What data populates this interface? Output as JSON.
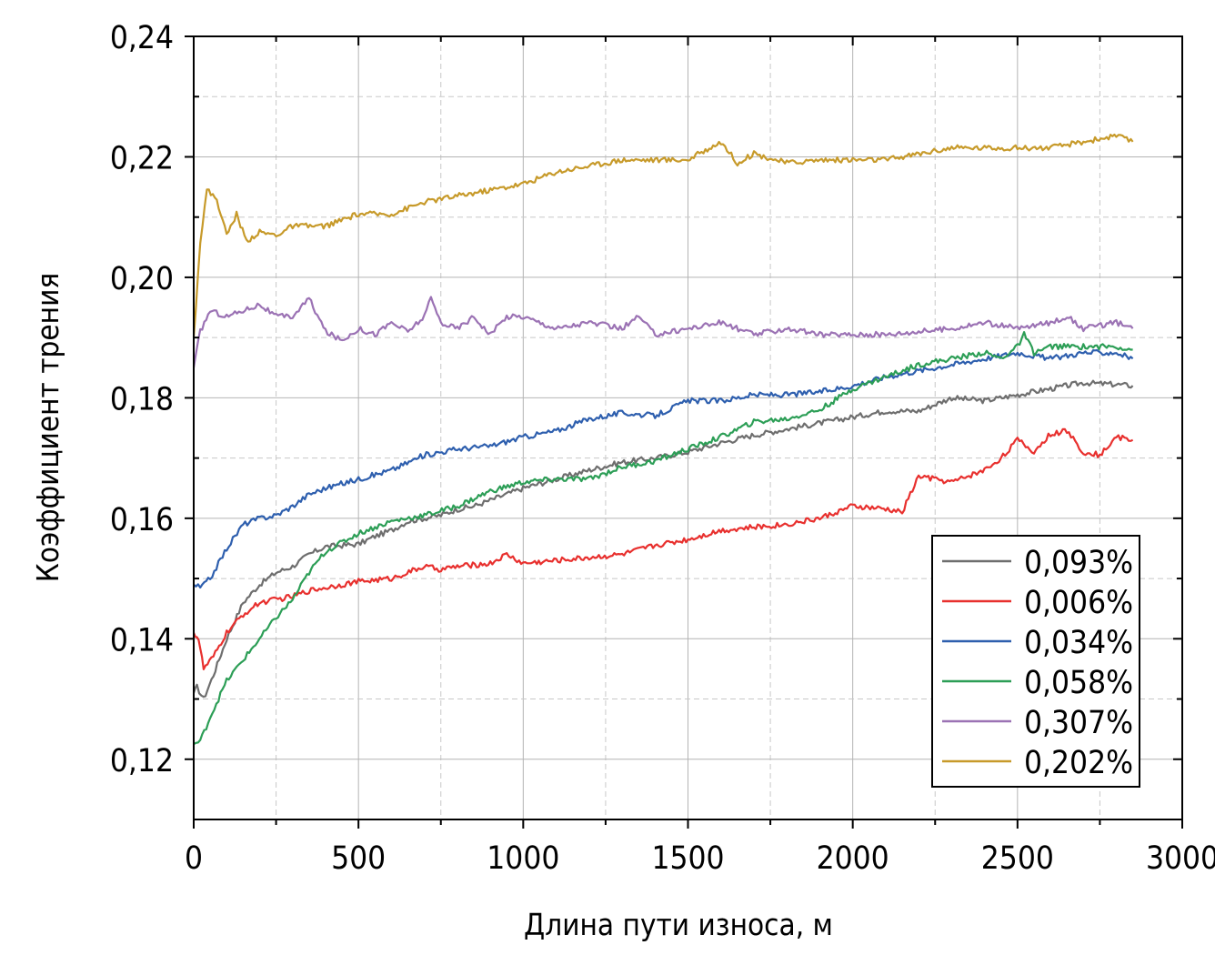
{
  "chart_data": {
    "type": "line",
    "xlabel": "Длина пути износа, м",
    "ylabel": "Коэффициент трения",
    "xlim": [
      0,
      3000
    ],
    "ylim": [
      0.11,
      0.24
    ],
    "x_ticks": [
      "0",
      "500",
      "1000",
      "1500",
      "2000",
      "2500",
      "3000"
    ],
    "y_ticks": [
      "0,12",
      "0,14",
      "0,16",
      "0,18",
      "0,20",
      "0,22",
      "0,24"
    ],
    "grid": true,
    "legend_position": "bottom-right",
    "series": [
      {
        "name": "0,093%",
        "color": "#6e6e6e",
        "points": [
          [
            0,
            0.131
          ],
          [
            10,
            0.132
          ],
          [
            30,
            0.13
          ],
          [
            60,
            0.134
          ],
          [
            100,
            0.14
          ],
          [
            150,
            0.146
          ],
          [
            200,
            0.149
          ],
          [
            250,
            0.151
          ],
          [
            300,
            0.152
          ],
          [
            350,
            0.154
          ],
          [
            400,
            0.1553
          ],
          [
            450,
            0.1555
          ],
          [
            500,
            0.1557
          ],
          [
            550,
            0.157
          ],
          [
            600,
            0.158
          ],
          [
            650,
            0.1595
          ],
          [
            700,
            0.16
          ],
          [
            750,
            0.1605
          ],
          [
            800,
            0.1615
          ],
          [
            850,
            0.162
          ],
          [
            900,
            0.163
          ],
          [
            950,
            0.164
          ],
          [
            1000,
            0.165
          ],
          [
            1100,
            0.1665
          ],
          [
            1200,
            0.168
          ],
          [
            1300,
            0.1693
          ],
          [
            1400,
            0.17
          ],
          [
            1500,
            0.171
          ],
          [
            1600,
            0.1725
          ],
          [
            1700,
            0.1738
          ],
          [
            1800,
            0.1748
          ],
          [
            1900,
            0.1758
          ],
          [
            2000,
            0.1768
          ],
          [
            2100,
            0.1778
          ],
          [
            2200,
            0.1778
          ],
          [
            2300,
            0.18
          ],
          [
            2400,
            0.1795
          ],
          [
            2500,
            0.1805
          ],
          [
            2600,
            0.1815
          ],
          [
            2700,
            0.1825
          ],
          [
            2800,
            0.1822
          ],
          [
            2850,
            0.182
          ]
        ]
      },
      {
        "name": "0,006%",
        "color": "#e8302e",
        "points": [
          [
            0,
            0.141
          ],
          [
            15,
            0.14
          ],
          [
            30,
            0.135
          ],
          [
            60,
            0.137
          ],
          [
            100,
            0.141
          ],
          [
            150,
            0.144
          ],
          [
            200,
            0.146
          ],
          [
            250,
            0.1465
          ],
          [
            300,
            0.147
          ],
          [
            350,
            0.148
          ],
          [
            400,
            0.1485
          ],
          [
            500,
            0.1495
          ],
          [
            600,
            0.15
          ],
          [
            700,
            0.152
          ],
          [
            750,
            0.1515
          ],
          [
            800,
            0.152
          ],
          [
            900,
            0.1525
          ],
          [
            950,
            0.154
          ],
          [
            1000,
            0.1525
          ],
          [
            1100,
            0.153
          ],
          [
            1200,
            0.1535
          ],
          [
            1300,
            0.154
          ],
          [
            1400,
            0.1555
          ],
          [
            1500,
            0.1565
          ],
          [
            1600,
            0.158
          ],
          [
            1700,
            0.1585
          ],
          [
            1800,
            0.159
          ],
          [
            1900,
            0.16
          ],
          [
            2000,
            0.162
          ],
          [
            2100,
            0.1615
          ],
          [
            2150,
            0.161
          ],
          [
            2200,
            0.167
          ],
          [
            2300,
            0.166
          ],
          [
            2400,
            0.168
          ],
          [
            2450,
            0.17
          ],
          [
            2500,
            0.173
          ],
          [
            2550,
            0.171
          ],
          [
            2600,
            0.174
          ],
          [
            2650,
            0.1745
          ],
          [
            2700,
            0.171
          ],
          [
            2750,
            0.1705
          ],
          [
            2800,
            0.1735
          ],
          [
            2850,
            0.173
          ]
        ]
      },
      {
        "name": "0,034%",
        "color": "#2e5fae",
        "points": [
          [
            0,
            0.149
          ],
          [
            20,
            0.1485
          ],
          [
            50,
            0.15
          ],
          [
            100,
            0.155
          ],
          [
            150,
            0.159
          ],
          [
            200,
            0.16
          ],
          [
            250,
            0.1605
          ],
          [
            300,
            0.162
          ],
          [
            350,
            0.164
          ],
          [
            400,
            0.165
          ],
          [
            500,
            0.1665
          ],
          [
            600,
            0.168
          ],
          [
            700,
            0.1705
          ],
          [
            800,
            0.1715
          ],
          [
            900,
            0.172
          ],
          [
            1000,
            0.1735
          ],
          [
            1100,
            0.1745
          ],
          [
            1200,
            0.1765
          ],
          [
            1300,
            0.1775
          ],
          [
            1400,
            0.177
          ],
          [
            1500,
            0.1795
          ],
          [
            1600,
            0.1795
          ],
          [
            1700,
            0.1805
          ],
          [
            1800,
            0.1805
          ],
          [
            1900,
            0.181
          ],
          [
            2000,
            0.182
          ],
          [
            2100,
            0.1835
          ],
          [
            2200,
            0.1845
          ],
          [
            2300,
            0.1855
          ],
          [
            2400,
            0.1865
          ],
          [
            2500,
            0.1875
          ],
          [
            2600,
            0.1865
          ],
          [
            2700,
            0.1875
          ],
          [
            2800,
            0.1875
          ],
          [
            2850,
            0.1865
          ]
        ]
      },
      {
        "name": "0,058%",
        "color": "#2c9e56",
        "points": [
          [
            0,
            0.1225
          ],
          [
            20,
            0.123
          ],
          [
            50,
            0.127
          ],
          [
            100,
            0.133
          ],
          [
            150,
            0.1365
          ],
          [
            200,
            0.14
          ],
          [
            250,
            0.1435
          ],
          [
            300,
            0.1465
          ],
          [
            350,
            0.151
          ],
          [
            400,
            0.1545
          ],
          [
            450,
            0.156
          ],
          [
            500,
            0.1575
          ],
          [
            550,
            0.1585
          ],
          [
            600,
            0.1595
          ],
          [
            700,
            0.1605
          ],
          [
            800,
            0.162
          ],
          [
            900,
            0.1645
          ],
          [
            1000,
            0.166
          ],
          [
            1100,
            0.1665
          ],
          [
            1200,
            0.1665
          ],
          [
            1300,
            0.1685
          ],
          [
            1400,
            0.1695
          ],
          [
            1500,
            0.1715
          ],
          [
            1600,
            0.1735
          ],
          [
            1700,
            0.176
          ],
          [
            1800,
            0.1765
          ],
          [
            1900,
            0.178
          ],
          [
            2000,
            0.1815
          ],
          [
            2100,
            0.1835
          ],
          [
            2200,
            0.1855
          ],
          [
            2300,
            0.1865
          ],
          [
            2400,
            0.1875
          ],
          [
            2450,
            0.1865
          ],
          [
            2500,
            0.1885
          ],
          [
            2520,
            0.1905
          ],
          [
            2550,
            0.1875
          ],
          [
            2600,
            0.1885
          ],
          [
            2700,
            0.1885
          ],
          [
            2800,
            0.1885
          ],
          [
            2850,
            0.188
          ]
        ]
      },
      {
        "name": "0,307%",
        "color": "#9b72b4",
        "points": [
          [
            0,
            0.185
          ],
          [
            20,
            0.191
          ],
          [
            50,
            0.1945
          ],
          [
            100,
            0.1935
          ],
          [
            150,
            0.1945
          ],
          [
            200,
            0.1955
          ],
          [
            250,
            0.1935
          ],
          [
            300,
            0.1935
          ],
          [
            350,
            0.1965
          ],
          [
            400,
            0.191
          ],
          [
            450,
            0.1895
          ],
          [
            500,
            0.1915
          ],
          [
            550,
            0.1905
          ],
          [
            600,
            0.1925
          ],
          [
            650,
            0.191
          ],
          [
            700,
            0.1935
          ],
          [
            720,
            0.1965
          ],
          [
            750,
            0.1925
          ],
          [
            800,
            0.1915
          ],
          [
            850,
            0.1935
          ],
          [
            900,
            0.1905
          ],
          [
            950,
            0.1935
          ],
          [
            1000,
            0.1935
          ],
          [
            1100,
            0.1915
          ],
          [
            1200,
            0.1925
          ],
          [
            1300,
            0.1915
          ],
          [
            1350,
            0.1935
          ],
          [
            1400,
            0.1905
          ],
          [
            1500,
            0.1915
          ],
          [
            1600,
            0.1925
          ],
          [
            1700,
            0.1905
          ],
          [
            1800,
            0.1915
          ],
          [
            1900,
            0.1905
          ],
          [
            2000,
            0.1905
          ],
          [
            2100,
            0.1905
          ],
          [
            2200,
            0.191
          ],
          [
            2300,
            0.1915
          ],
          [
            2400,
            0.1925
          ],
          [
            2500,
            0.1915
          ],
          [
            2600,
            0.1925
          ],
          [
            2650,
            0.1935
          ],
          [
            2700,
            0.1915
          ],
          [
            2800,
            0.1925
          ],
          [
            2850,
            0.1915
          ]
        ]
      },
      {
        "name": "0,202%",
        "color": "#c79a2a",
        "points": [
          [
            0,
            0.19
          ],
          [
            20,
            0.206
          ],
          [
            40,
            0.2145
          ],
          [
            70,
            0.213
          ],
          [
            100,
            0.207
          ],
          [
            130,
            0.2105
          ],
          [
            160,
            0.206
          ],
          [
            200,
            0.2075
          ],
          [
            250,
            0.207
          ],
          [
            300,
            0.2085
          ],
          [
            400,
            0.2085
          ],
          [
            500,
            0.2105
          ],
          [
            600,
            0.2105
          ],
          [
            700,
            0.2125
          ],
          [
            800,
            0.2135
          ],
          [
            900,
            0.2145
          ],
          [
            1000,
            0.2155
          ],
          [
            1100,
            0.2175
          ],
          [
            1200,
            0.2185
          ],
          [
            1300,
            0.2195
          ],
          [
            1400,
            0.2195
          ],
          [
            1500,
            0.2195
          ],
          [
            1600,
            0.2225
          ],
          [
            1650,
            0.219
          ],
          [
            1700,
            0.2205
          ],
          [
            1800,
            0.219
          ],
          [
            1900,
            0.2195
          ],
          [
            2000,
            0.2195
          ],
          [
            2100,
            0.2195
          ],
          [
            2200,
            0.2205
          ],
          [
            2300,
            0.2215
          ],
          [
            2400,
            0.2215
          ],
          [
            2500,
            0.2215
          ],
          [
            2600,
            0.2215
          ],
          [
            2700,
            0.2225
          ],
          [
            2800,
            0.2235
          ],
          [
            2850,
            0.2225
          ]
        ]
      }
    ]
  }
}
